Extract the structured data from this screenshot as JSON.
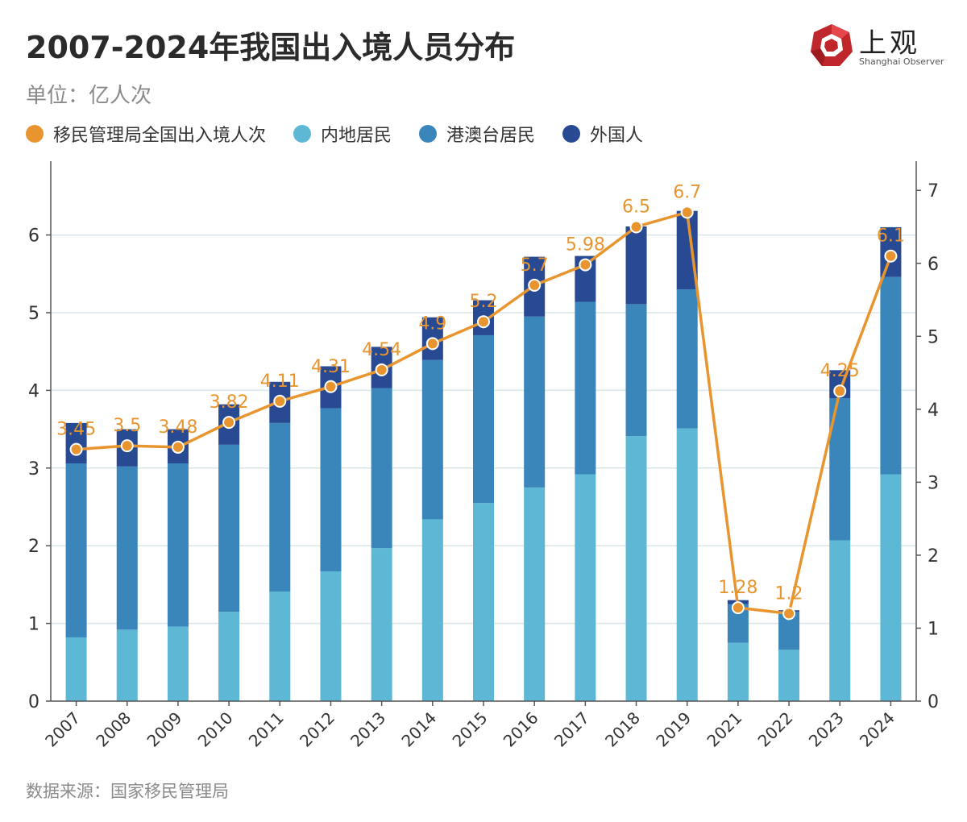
{
  "title": "2007-2024年我国出入境人员分布",
  "unit": "单位：亿人次",
  "source": "数据来源：国家移民管理局",
  "logo": {
    "text": "上观",
    "subtitle": "Shanghai Observer",
    "icon": "shanghai-observer-logo-icon",
    "color": "#c0272d"
  },
  "colors": {
    "total": "#e8952f",
    "mainland": "#5cb8d4",
    "hkmacaotw": "#3a86ba",
    "foreigner": "#274a93",
    "grid": "#d9e6ea",
    "axis": "#555555"
  },
  "legend": [
    {
      "key": "total",
      "label": "移民管理局全国出入境人次"
    },
    {
      "key": "mainland",
      "label": "内地居民"
    },
    {
      "key": "hkmacaotw",
      "label": "港澳台居民"
    },
    {
      "key": "foreigner",
      "label": "外国人"
    }
  ],
  "chart_data": {
    "type": "bar",
    "stacked": true,
    "categories": [
      "2007",
      "2008",
      "2009",
      "2010",
      "2011",
      "2012",
      "2013",
      "2014",
      "2015",
      "2016",
      "2017",
      "2018",
      "2019",
      "2021",
      "2022",
      "2023",
      "2024"
    ],
    "series": [
      {
        "name": "内地居民",
        "key": "mainland",
        "values": [
          0.82,
          0.92,
          0.96,
          1.15,
          1.41,
          1.67,
          1.97,
          2.34,
          2.55,
          2.75,
          2.92,
          3.41,
          3.51,
          0.75,
          0.66,
          2.07,
          2.92
        ]
      },
      {
        "name": "港澳台居民",
        "key": "hkmacaotw",
        "values": [
          2.24,
          2.1,
          2.1,
          2.15,
          2.17,
          2.1,
          2.06,
          2.05,
          2.16,
          2.2,
          2.22,
          1.7,
          1.79,
          0.5,
          0.49,
          1.83,
          2.54
        ]
      },
      {
        "name": "外国人",
        "key": "foreigner",
        "values": [
          0.52,
          0.48,
          0.44,
          0.52,
          0.53,
          0.54,
          0.53,
          0.55,
          0.45,
          0.77,
          0.59,
          1.0,
          1.01,
          0.05,
          0.02,
          0.36,
          0.64
        ]
      }
    ],
    "line": {
      "name": "移民管理局全国出入境人次",
      "key": "total",
      "axis": "right",
      "values": [
        3.45,
        3.5,
        3.48,
        3.82,
        4.11,
        4.31,
        4.54,
        4.9,
        5.2,
        5.7,
        5.98,
        6.5,
        6.7,
        1.28,
        1.2,
        4.25,
        6.1
      ]
    },
    "left_axis": {
      "min": 0,
      "max": 6.95,
      "ticks": [
        0,
        1,
        2,
        3,
        4,
        5,
        6
      ]
    },
    "right_axis": {
      "min": 0,
      "max": 7.4,
      "ticks": [
        0,
        1,
        2,
        3,
        4,
        5,
        6,
        7
      ]
    },
    "grid": true,
    "legend_position": "top-left"
  }
}
